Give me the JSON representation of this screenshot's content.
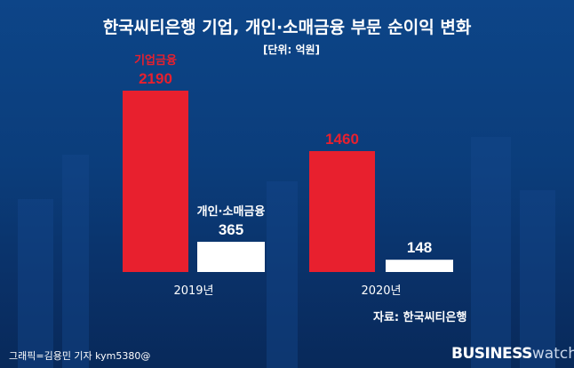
{
  "title": "한국씨티은행 기업, 개인·소매금융 부문 순이익 변화",
  "unit": "[단위: 억원]",
  "source": "자료: 한국씨티은행",
  "credit": "그래픽=김용민 기자 kym5380@",
  "logo": {
    "bold": "BUSINESS",
    "light": "watch"
  },
  "colors": {
    "background": "#0b3d7b",
    "corporate": "#e8202e",
    "retail": "#ffffff"
  },
  "chart_data": {
    "type": "bar",
    "title": "한국씨티은행 기업, 개인·소매금융 부문 순이익 변화",
    "ylabel": "[단위: 억원]",
    "categories": [
      "2019년",
      "2020년"
    ],
    "series": [
      {
        "name": "기업금융",
        "values": [
          2190,
          1460
        ],
        "color": "#e8202e"
      },
      {
        "name": "개인·소매금융",
        "values": [
          365,
          148
        ],
        "color": "#ffffff"
      }
    ],
    "ylim": [
      0,
      2190
    ],
    "grid": false,
    "legend": "labels above first bars"
  }
}
